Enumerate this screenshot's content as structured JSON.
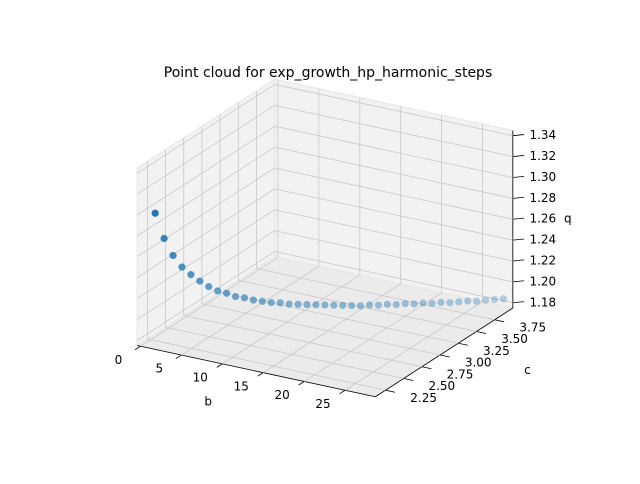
{
  "chart_data": {
    "type": "scatter3d",
    "title": "Point cloud for exp_growth_hp_harmonic_steps",
    "xlabel": "b",
    "ylabel": "c",
    "zlabel": "q",
    "color": "#1f77b4",
    "grid": true,
    "x": [
      1.0,
      1.7,
      2.4,
      3.1,
      3.8,
      4.5,
      5.2,
      5.9,
      6.6,
      7.3,
      8.0,
      8.7,
      9.4,
      10.1,
      10.8,
      11.5,
      12.2,
      12.9,
      13.6,
      14.3,
      15.0,
      15.7,
      16.4,
      17.1,
      17.8,
      18.5,
      19.2,
      19.9,
      20.6,
      21.3,
      22.0,
      22.7,
      23.4,
      24.1,
      24.8,
      25.5,
      26.2,
      26.9,
      27.6,
      28.3
    ],
    "y": [
      2.2,
      2.244,
      2.288,
      2.332,
      2.376,
      2.42,
      2.464,
      2.508,
      2.552,
      2.596,
      2.64,
      2.684,
      2.728,
      2.772,
      2.816,
      2.86,
      2.904,
      2.948,
      2.992,
      3.036,
      3.08,
      3.124,
      3.168,
      3.212,
      3.256,
      3.3,
      3.344,
      3.388,
      3.432,
      3.476,
      3.52,
      3.564,
      3.608,
      3.652,
      3.696,
      3.74,
      3.784,
      3.828,
      3.872,
      3.916
    ],
    "z": [
      1.3,
      1.275,
      1.258,
      1.246,
      1.238,
      1.231,
      1.225,
      1.22,
      1.217,
      1.213,
      1.211,
      1.208,
      1.206,
      1.204,
      1.203,
      1.201,
      1.2,
      1.199,
      1.198,
      1.197,
      1.196,
      1.195,
      1.194,
      1.193,
      1.193,
      1.192,
      1.192,
      1.191,
      1.191,
      1.19,
      1.19,
      1.189,
      1.189,
      1.188,
      1.188,
      1.188,
      1.187,
      1.187,
      1.187,
      1.187
    ],
    "xlim": [
      -0.4,
      28.7
    ],
    "ylim": [
      2.11,
      4.0
    ],
    "zlim": [
      1.175,
      1.345
    ],
    "xticks": [
      0,
      5,
      10,
      15,
      20,
      25
    ],
    "yticks": [
      2.25,
      {
        "value": 2.5,
        "label": "2.50"
      },
      2.75,
      {
        "value": 3,
        "label": "3.00"
      },
      3.25,
      {
        "value": 3.5,
        "label": "3.50"
      },
      3.75
    ],
    "zticks": [
      1.18,
      {
        "value": 1.2,
        "label": "1.20"
      },
      1.22,
      1.24,
      1.26,
      1.28,
      {
        "value": 1.3,
        "label": "1.30"
      },
      1.32,
      1.34
    ]
  }
}
